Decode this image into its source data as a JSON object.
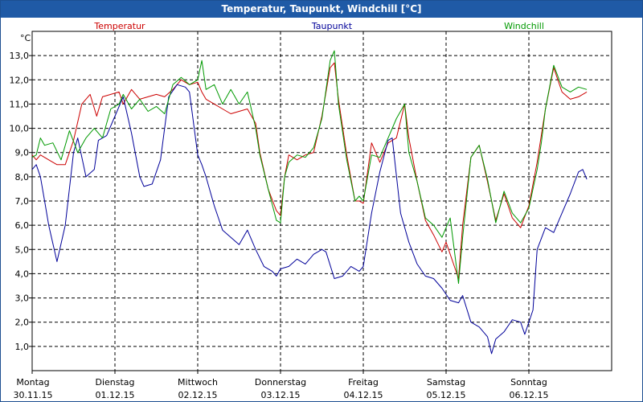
{
  "window": {
    "title": "Temperatur, Taupunkt, Windchill [°C]"
  },
  "chart_data": {
    "type": "line",
    "title": "Temperatur, Taupunkt, Windchill [°C]",
    "ylabel": "°C",
    "xlabel": "",
    "ylim": [
      0.0,
      14.0
    ],
    "xlim": [
      0,
      7
    ],
    "grid": true,
    "legend_position": "top",
    "y_ticks": [
      "1,0",
      "2,0",
      "3,0",
      "4,0",
      "5,0",
      "6,0",
      "7,0",
      "8,0",
      "9,0",
      "10,0",
      "11,0",
      "12,0",
      "13,0"
    ],
    "x_ticks": [
      {
        "day": "Montag",
        "date": "30.11.15"
      },
      {
        "day": "Dienstag",
        "date": "01.12.15"
      },
      {
        "day": "Mittwoch",
        "date": "02.12.15"
      },
      {
        "day": "Donnerstag",
        "date": "03.12.15"
      },
      {
        "day": "Freitag",
        "date": "04.12.15"
      },
      {
        "day": "Samstag",
        "date": "05.12.15"
      },
      {
        "day": "Sonntag",
        "date": "06.12.15"
      }
    ],
    "series": [
      {
        "name": "Temperatur",
        "color": "#cc0000",
        "points": [
          [
            0.0,
            8.9
          ],
          [
            0.05,
            8.7
          ],
          [
            0.1,
            8.9
          ],
          [
            0.2,
            8.7
          ],
          [
            0.3,
            8.5
          ],
          [
            0.4,
            8.5
          ],
          [
            0.5,
            9.5
          ],
          [
            0.6,
            11.0
          ],
          [
            0.7,
            11.4
          ],
          [
            0.78,
            10.5
          ],
          [
            0.85,
            11.3
          ],
          [
            0.95,
            11.4
          ],
          [
            1.05,
            11.5
          ],
          [
            1.1,
            11.0
          ],
          [
            1.2,
            11.6
          ],
          [
            1.3,
            11.2
          ],
          [
            1.4,
            11.3
          ],
          [
            1.5,
            11.4
          ],
          [
            1.6,
            11.3
          ],
          [
            1.7,
            11.6
          ],
          [
            1.8,
            12.0
          ],
          [
            1.9,
            11.8
          ],
          [
            2.0,
            11.9
          ],
          [
            2.05,
            11.5
          ],
          [
            2.1,
            11.2
          ],
          [
            2.2,
            11.0
          ],
          [
            2.3,
            10.8
          ],
          [
            2.4,
            10.6
          ],
          [
            2.5,
            10.7
          ],
          [
            2.6,
            10.8
          ],
          [
            2.7,
            10.2
          ],
          [
            2.75,
            9.0
          ],
          [
            2.85,
            7.5
          ],
          [
            2.95,
            6.6
          ],
          [
            3.0,
            6.4
          ],
          [
            3.05,
            8.0
          ],
          [
            3.1,
            8.9
          ],
          [
            3.2,
            8.7
          ],
          [
            3.3,
            8.9
          ],
          [
            3.4,
            9.0
          ],
          [
            3.5,
            10.5
          ],
          [
            3.6,
            12.5
          ],
          [
            3.65,
            12.7
          ],
          [
            3.7,
            11.2
          ],
          [
            3.8,
            8.9
          ],
          [
            3.9,
            7.0
          ],
          [
            3.95,
            7.0
          ],
          [
            4.0,
            6.9
          ],
          [
            4.1,
            9.4
          ],
          [
            4.2,
            8.6
          ],
          [
            4.3,
            9.4
          ],
          [
            4.4,
            9.6
          ],
          [
            4.5,
            11.0
          ],
          [
            4.55,
            9.6
          ],
          [
            4.65,
            7.8
          ],
          [
            4.75,
            6.2
          ],
          [
            4.85,
            5.6
          ],
          [
            4.95,
            4.9
          ],
          [
            5.0,
            5.3
          ],
          [
            5.1,
            4.3
          ],
          [
            5.15,
            3.8
          ],
          [
            5.2,
            6.0
          ],
          [
            5.3,
            8.8
          ],
          [
            5.4,
            9.3
          ],
          [
            5.5,
            7.8
          ],
          [
            5.6,
            6.2
          ],
          [
            5.7,
            7.3
          ],
          [
            5.8,
            6.3
          ],
          [
            5.9,
            5.9
          ],
          [
            6.0,
            6.8
          ],
          [
            6.1,
            8.6
          ],
          [
            6.2,
            10.8
          ],
          [
            6.3,
            12.5
          ],
          [
            6.4,
            11.5
          ],
          [
            6.5,
            11.2
          ],
          [
            6.6,
            11.3
          ],
          [
            6.7,
            11.5
          ]
        ]
      },
      {
        "name": "Taupunkt",
        "color": "#000099",
        "points": [
          [
            0.0,
            8.3
          ],
          [
            0.05,
            8.5
          ],
          [
            0.1,
            8.0
          ],
          [
            0.15,
            7.0
          ],
          [
            0.2,
            6.0
          ],
          [
            0.3,
            4.5
          ],
          [
            0.4,
            6.0
          ],
          [
            0.5,
            9.0
          ],
          [
            0.55,
            9.6
          ],
          [
            0.65,
            8.0
          ],
          [
            0.75,
            8.3
          ],
          [
            0.8,
            9.5
          ],
          [
            0.9,
            9.7
          ],
          [
            1.0,
            10.5
          ],
          [
            1.1,
            11.3
          ],
          [
            1.2,
            9.8
          ],
          [
            1.3,
            8.0
          ],
          [
            1.35,
            7.6
          ],
          [
            1.45,
            7.7
          ],
          [
            1.55,
            8.7
          ],
          [
            1.65,
            11.3
          ],
          [
            1.75,
            11.8
          ],
          [
            1.85,
            11.7
          ],
          [
            1.9,
            11.5
          ],
          [
            2.0,
            8.9
          ],
          [
            2.05,
            8.5
          ],
          [
            2.1,
            8.0
          ],
          [
            2.2,
            6.8
          ],
          [
            2.3,
            5.8
          ],
          [
            2.4,
            5.5
          ],
          [
            2.5,
            5.2
          ],
          [
            2.6,
            5.8
          ],
          [
            2.7,
            5.0
          ],
          [
            2.8,
            4.3
          ],
          [
            2.9,
            4.1
          ],
          [
            2.95,
            3.9
          ],
          [
            3.0,
            4.2
          ],
          [
            3.1,
            4.3
          ],
          [
            3.2,
            4.6
          ],
          [
            3.3,
            4.4
          ],
          [
            3.4,
            4.8
          ],
          [
            3.5,
            5.0
          ],
          [
            3.55,
            4.9
          ],
          [
            3.65,
            3.8
          ],
          [
            3.75,
            3.9
          ],
          [
            3.85,
            4.3
          ],
          [
            3.95,
            4.1
          ],
          [
            4.0,
            4.3
          ],
          [
            4.1,
            6.5
          ],
          [
            4.2,
            8.2
          ],
          [
            4.3,
            9.5
          ],
          [
            4.35,
            9.6
          ],
          [
            4.45,
            6.5
          ],
          [
            4.55,
            5.3
          ],
          [
            4.65,
            4.4
          ],
          [
            4.75,
            3.9
          ],
          [
            4.85,
            3.8
          ],
          [
            4.95,
            3.4
          ],
          [
            5.05,
            2.9
          ],
          [
            5.15,
            2.8
          ],
          [
            5.2,
            3.1
          ],
          [
            5.3,
            2.0
          ],
          [
            5.4,
            1.8
          ],
          [
            5.5,
            1.4
          ],
          [
            5.55,
            0.7
          ],
          [
            5.6,
            1.3
          ],
          [
            5.7,
            1.6
          ],
          [
            5.8,
            2.1
          ],
          [
            5.9,
            2.0
          ],
          [
            5.95,
            1.5
          ],
          [
            6.05,
            2.5
          ],
          [
            6.1,
            5.0
          ],
          [
            6.2,
            5.9
          ],
          [
            6.3,
            5.7
          ],
          [
            6.4,
            6.5
          ],
          [
            6.5,
            7.3
          ],
          [
            6.6,
            8.2
          ],
          [
            6.65,
            8.3
          ],
          [
            6.7,
            7.9
          ]
        ]
      },
      {
        "name": "Windchill",
        "color": "#009900",
        "points": [
          [
            0.0,
            8.8
          ],
          [
            0.05,
            8.9
          ],
          [
            0.1,
            9.6
          ],
          [
            0.15,
            9.3
          ],
          [
            0.25,
            9.4
          ],
          [
            0.35,
            8.7
          ],
          [
            0.45,
            9.9
          ],
          [
            0.55,
            9.0
          ],
          [
            0.65,
            9.6
          ],
          [
            0.75,
            10.0
          ],
          [
            0.85,
            9.6
          ],
          [
            0.95,
            10.8
          ],
          [
            1.05,
            11.0
          ],
          [
            1.1,
            11.4
          ],
          [
            1.2,
            10.8
          ],
          [
            1.3,
            11.2
          ],
          [
            1.4,
            10.7
          ],
          [
            1.5,
            10.9
          ],
          [
            1.6,
            10.6
          ],
          [
            1.7,
            11.8
          ],
          [
            1.8,
            12.1
          ],
          [
            1.9,
            11.8
          ],
          [
            2.0,
            12.0
          ],
          [
            2.05,
            12.8
          ],
          [
            2.1,
            11.6
          ],
          [
            2.2,
            11.8
          ],
          [
            2.3,
            11.0
          ],
          [
            2.4,
            11.6
          ],
          [
            2.5,
            11.0
          ],
          [
            2.6,
            11.5
          ],
          [
            2.7,
            10.0
          ],
          [
            2.75,
            8.9
          ],
          [
            2.85,
            7.5
          ],
          [
            2.95,
            6.2
          ],
          [
            3.0,
            6.1
          ],
          [
            3.05,
            8.0
          ],
          [
            3.1,
            8.6
          ],
          [
            3.2,
            8.9
          ],
          [
            3.3,
            8.8
          ],
          [
            3.4,
            9.2
          ],
          [
            3.5,
            10.4
          ],
          [
            3.6,
            12.8
          ],
          [
            3.65,
            13.2
          ],
          [
            3.7,
            11.0
          ],
          [
            3.8,
            8.7
          ],
          [
            3.9,
            7.0
          ],
          [
            3.95,
            7.2
          ],
          [
            4.0,
            7.0
          ],
          [
            4.1,
            8.9
          ],
          [
            4.2,
            8.8
          ],
          [
            4.3,
            9.6
          ],
          [
            4.4,
            10.4
          ],
          [
            4.5,
            11.0
          ],
          [
            4.55,
            9.0
          ],
          [
            4.65,
            7.8
          ],
          [
            4.75,
            6.3
          ],
          [
            4.85,
            6.0
          ],
          [
            4.95,
            5.5
          ],
          [
            5.05,
            6.3
          ],
          [
            5.15,
            3.6
          ],
          [
            5.2,
            5.5
          ],
          [
            5.3,
            8.8
          ],
          [
            5.4,
            9.3
          ],
          [
            5.5,
            7.9
          ],
          [
            5.6,
            6.1
          ],
          [
            5.7,
            7.4
          ],
          [
            5.8,
            6.5
          ],
          [
            5.9,
            6.1
          ],
          [
            6.0,
            6.7
          ],
          [
            6.1,
            8.3
          ],
          [
            6.15,
            9.4
          ],
          [
            6.2,
            10.8
          ],
          [
            6.3,
            12.6
          ],
          [
            6.4,
            11.7
          ],
          [
            6.5,
            11.5
          ],
          [
            6.6,
            11.7
          ],
          [
            6.7,
            11.6
          ]
        ]
      }
    ]
  }
}
